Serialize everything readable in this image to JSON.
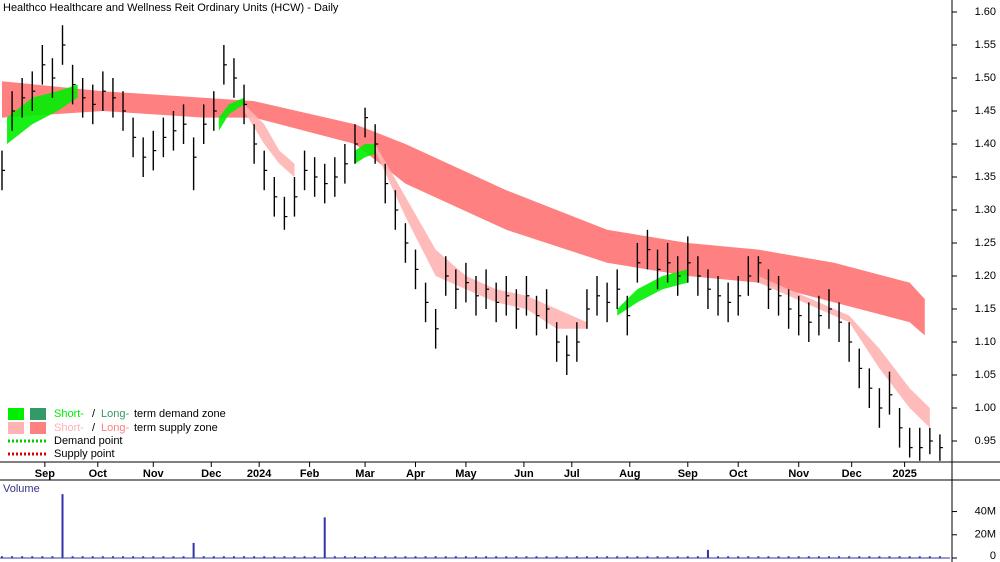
{
  "chart_data": {
    "type": "ohlc",
    "title": "Healthco Healthcare and Wellness Reit Ordinary Units (HCW) - Daily",
    "volume_label": "Volume",
    "xlim": [
      0,
      376
    ],
    "xticks": [
      {
        "value": 17,
        "label": "Sep"
      },
      {
        "value": 38,
        "label": "Oct"
      },
      {
        "value": 60,
        "label": "Nov"
      },
      {
        "value": 83,
        "label": "Dec"
      },
      {
        "value": 102,
        "label": "2024"
      },
      {
        "value": 122,
        "label": "Feb"
      },
      {
        "value": 144,
        "label": "Mar"
      },
      {
        "value": 164,
        "label": "Apr"
      },
      {
        "value": 184,
        "label": "May"
      },
      {
        "value": 207,
        "label": "Jun"
      },
      {
        "value": 226,
        "label": "Jul"
      },
      {
        "value": 249,
        "label": "Aug"
      },
      {
        "value": 272,
        "label": "Sep"
      },
      {
        "value": 292,
        "label": "Oct"
      },
      {
        "value": 316,
        "label": "Nov"
      },
      {
        "value": 337,
        "label": "Dec"
      },
      {
        "value": 358,
        "label": "2025"
      }
    ],
    "ylim": [
      0.9,
      1.62
    ],
    "yticks": [
      0.95,
      {
        "value": 1.0,
        "label": "1.00"
      },
      1.05,
      {
        "value": 1.1,
        "label": "1.10"
      },
      1.15,
      {
        "value": 1.2,
        "label": "1.20"
      },
      1.25,
      {
        "value": 1.3,
        "label": "1.30"
      },
      1.35,
      {
        "value": 1.4,
        "label": "1.40"
      },
      1.45,
      {
        "value": 1.5,
        "label": "1.50"
      },
      1.55,
      {
        "value": 1.6,
        "label": "1.60"
      }
    ],
    "y2lim": [
      0,
      62000000
    ],
    "y2ticks": [
      0,
      {
        "value": 20000000,
        "label": "20M"
      },
      {
        "value": 40000000,
        "label": "40M"
      }
    ],
    "bar_color": "#000000",
    "volume_color": "#3333aa",
    "x": [
      0,
      4,
      8,
      12,
      16,
      20,
      24,
      28,
      32,
      36,
      40,
      44,
      48,
      52,
      56,
      60,
      64,
      68,
      72,
      76,
      80,
      84,
      88,
      92,
      96,
      100,
      104,
      108,
      112,
      116,
      120,
      124,
      128,
      132,
      136,
      140,
      144,
      148,
      152,
      156,
      160,
      164,
      168,
      172,
      176,
      180,
      184,
      188,
      192,
      196,
      200,
      204,
      208,
      212,
      216,
      220,
      224,
      228,
      232,
      236,
      240,
      244,
      248,
      252,
      256,
      260,
      264,
      268,
      272,
      276,
      280,
      284,
      288,
      292,
      296,
      300,
      304,
      308,
      312,
      316,
      320,
      324,
      328,
      332,
      336,
      340,
      344,
      348,
      352,
      356,
      360,
      364,
      368,
      372
    ],
    "high": [
      1.39,
      1.48,
      1.5,
      1.51,
      1.55,
      1.53,
      1.58,
      1.52,
      1.5,
      1.49,
      1.51,
      1.5,
      1.48,
      1.44,
      1.41,
      1.42,
      1.44,
      1.45,
      1.46,
      1.41,
      1.46,
      1.48,
      1.55,
      1.53,
      1.49,
      1.43,
      1.39,
      1.35,
      1.32,
      1.35,
      1.39,
      1.38,
      1.37,
      1.38,
      1.4,
      1.43,
      1.455,
      1.43,
      1.37,
      1.33,
      1.28,
      1.24,
      1.19,
      1.15,
      1.23,
      1.21,
      1.22,
      1.2,
      1.21,
      1.19,
      1.2,
      1.18,
      1.2,
      1.17,
      1.18,
      1.13,
      1.11,
      1.13,
      1.18,
      1.2,
      1.19,
      1.21,
      1.17,
      1.25,
      1.27,
      1.24,
      1.25,
      1.23,
      1.26,
      1.23,
      1.21,
      1.2,
      1.19,
      1.2,
      1.23,
      1.23,
      1.21,
      1.2,
      1.18,
      1.17,
      1.16,
      1.17,
      1.18,
      1.16,
      1.13,
      1.09,
      1.06,
      1.03,
      1.055,
      1.0,
      0.97,
      0.97,
      0.97,
      0.96
    ],
    "low": [
      1.33,
      1.42,
      1.44,
      1.45,
      1.49,
      1.47,
      1.52,
      1.46,
      1.44,
      1.43,
      1.45,
      1.44,
      1.42,
      1.38,
      1.35,
      1.36,
      1.38,
      1.39,
      1.4,
      1.33,
      1.4,
      1.42,
      1.49,
      1.47,
      1.43,
      1.37,
      1.33,
      1.29,
      1.27,
      1.29,
      1.33,
      1.32,
      1.31,
      1.32,
      1.34,
      1.37,
      1.41,
      1.37,
      1.31,
      1.27,
      1.22,
      1.18,
      1.13,
      1.09,
      1.17,
      1.15,
      1.16,
      1.14,
      1.15,
      1.13,
      1.14,
      1.12,
      1.14,
      1.11,
      1.12,
      1.07,
      1.05,
      1.07,
      1.12,
      1.14,
      1.13,
      1.15,
      1.11,
      1.19,
      1.21,
      1.18,
      1.19,
      1.17,
      1.19,
      1.17,
      1.15,
      1.14,
      1.13,
      1.14,
      1.17,
      1.19,
      1.15,
      1.14,
      1.12,
      1.11,
      1.1,
      1.11,
      1.12,
      1.1,
      1.07,
      1.03,
      1.0,
      0.97,
      0.99,
      0.94,
      0.925,
      0.92,
      0.93,
      0.92
    ],
    "close": [
      1.36,
      1.45,
      1.47,
      1.48,
      1.52,
      1.5,
      1.55,
      1.49,
      1.47,
      1.46,
      1.48,
      1.47,
      1.45,
      1.41,
      1.38,
      1.39,
      1.41,
      1.42,
      1.43,
      1.38,
      1.43,
      1.45,
      1.52,
      1.5,
      1.46,
      1.4,
      1.36,
      1.32,
      1.29,
      1.32,
      1.36,
      1.35,
      1.34,
      1.35,
      1.37,
      1.4,
      1.44,
      1.4,
      1.34,
      1.3,
      1.25,
      1.21,
      1.16,
      1.12,
      1.2,
      1.18,
      1.19,
      1.17,
      1.18,
      1.16,
      1.17,
      1.15,
      1.17,
      1.14,
      1.15,
      1.1,
      1.08,
      1.1,
      1.15,
      1.17,
      1.16,
      1.18,
      1.14,
      1.22,
      1.24,
      1.21,
      1.22,
      1.2,
      1.22,
      1.2,
      1.18,
      1.17,
      1.16,
      1.17,
      1.2,
      1.22,
      1.18,
      1.17,
      1.15,
      1.14,
      1.13,
      1.14,
      1.15,
      1.13,
      1.1,
      1.06,
      1.03,
      1.0,
      1.02,
      0.97,
      0.94,
      0.94,
      0.95,
      0.94
    ],
    "volume": [
      1500000,
      1500000,
      1500000,
      1500000,
      1500000,
      1500000,
      55000000,
      1500000,
      1500000,
      1500000,
      1500000,
      1500000,
      1500000,
      1500000,
      1500000,
      1500000,
      1500000,
      1500000,
      1500000,
      13000000,
      1500000,
      1500000,
      1500000,
      1500000,
      1500000,
      1500000,
      1500000,
      1500000,
      1500000,
      1500000,
      1500000,
      1500000,
      35000000,
      1500000,
      1500000,
      1500000,
      1500000,
      1500000,
      1500000,
      1500000,
      1500000,
      1500000,
      1500000,
      1500000,
      1500000,
      1500000,
      1500000,
      1500000,
      1500000,
      1500000,
      1500000,
      1500000,
      1500000,
      1500000,
      1500000,
      1500000,
      1500000,
      1500000,
      1500000,
      1500000,
      1500000,
      1500000,
      1500000,
      1500000,
      1500000,
      1500000,
      1500000,
      1500000,
      1500000,
      1500000,
      7000000,
      1500000,
      1500000,
      1500000,
      1500000,
      1500000,
      1500000,
      1500000,
      1500000,
      1500000,
      1500000,
      1500000,
      1500000,
      1500000,
      1500000,
      1500000,
      1500000,
      1500000,
      1500000,
      1500000,
      1500000,
      1500000,
      1500000,
      1500000
    ],
    "zones": [
      {
        "kind": "long-supply",
        "color": "#ff8080",
        "x": [
          0,
          40,
          80,
          100,
          140,
          160,
          200,
          240,
          272,
          300,
          330,
          360,
          366
        ],
        "upper": [
          1.495,
          1.48,
          1.47,
          1.465,
          1.43,
          1.4,
          1.33,
          1.27,
          1.25,
          1.24,
          1.22,
          1.19,
          1.165
        ],
        "lower": [
          1.44,
          1.45,
          1.44,
          1.44,
          1.4,
          1.34,
          1.27,
          1.22,
          1.2,
          1.19,
          1.16,
          1.13,
          1.11
        ]
      },
      {
        "kind": "short-supply",
        "color": "#ffb3b3",
        "x": [
          96,
          104,
          110,
          116
        ],
        "upper": [
          1.46,
          1.43,
          1.39,
          1.37
        ],
        "lower": [
          1.45,
          1.4,
          1.37,
          1.35
        ]
      },
      {
        "kind": "short-supply",
        "color": "#ffb3b3",
        "x": [
          148,
          160,
          172,
          184,
          196,
          208,
          220,
          232
        ],
        "upper": [
          1.4,
          1.32,
          1.24,
          1.2,
          1.18,
          1.17,
          1.15,
          1.13
        ],
        "lower": [
          1.39,
          1.29,
          1.2,
          1.18,
          1.16,
          1.15,
          1.12,
          1.12
        ]
      },
      {
        "kind": "short-supply",
        "color": "#ffb3b3",
        "x": [
          300,
          312,
          324,
          336,
          348,
          360,
          368
        ],
        "upper": [
          1.2,
          1.18,
          1.16,
          1.14,
          1.09,
          1.03,
          1.0
        ],
        "lower": [
          1.19,
          1.17,
          1.15,
          1.13,
          1.06,
          1.0,
          0.97
        ]
      },
      {
        "kind": "short-demand",
        "color": "#00ee00",
        "x": [
          2,
          12,
          22,
          30
        ],
        "upper": [
          1.44,
          1.47,
          1.48,
          1.49
        ],
        "lower": [
          1.4,
          1.43,
          1.45,
          1.47
        ]
      },
      {
        "kind": "short-demand",
        "color": "#00ee00",
        "x": [
          86,
          90,
          96
        ],
        "upper": [
          1.44,
          1.46,
          1.47
        ],
        "lower": [
          1.42,
          1.445,
          1.46
        ]
      },
      {
        "kind": "short-demand",
        "color": "#00ee00",
        "x": [
          140,
          144,
          148
        ],
        "upper": [
          1.39,
          1.4,
          1.4
        ],
        "lower": [
          1.37,
          1.38,
          1.385
        ]
      },
      {
        "kind": "short-demand",
        "color": "#00ee00",
        "x": [
          244,
          252,
          262,
          272
        ],
        "upper": [
          1.15,
          1.18,
          1.2,
          1.21
        ],
        "lower": [
          1.14,
          1.16,
          1.18,
          1.19
        ]
      }
    ],
    "legend": {
      "demand_zone": {
        "short": "Short-",
        "sep": "/",
        "long": "Long-",
        "rest": "term demand zone",
        "short_color": "#00ee00",
        "long_color": "#339966"
      },
      "supply_zone": {
        "short": "Short-",
        "sep": "/",
        "long": "Long-",
        "rest": "term supply zone",
        "short_color": "#ffb3b3",
        "long_color": "#ff8080"
      },
      "demand_point": {
        "text": "Demand point",
        "color": "#00cc00"
      },
      "supply_point": {
        "text": "Supply point",
        "color": "#dd0000"
      }
    }
  }
}
